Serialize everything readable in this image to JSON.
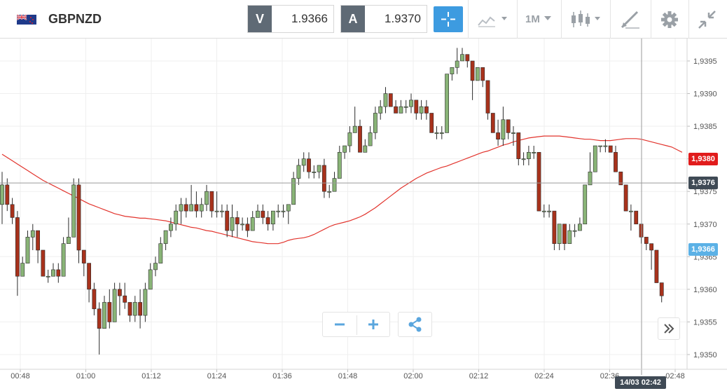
{
  "header": {
    "symbol": "GBPNZD",
    "flag_icon": "gb-nz-flag-icon",
    "bid": {
      "label": "V",
      "value": "1.9366"
    },
    "ask": {
      "label": "A",
      "value": "1.9370"
    },
    "timeframe": "1M",
    "tools": [
      "crosshair-icon",
      "chart-type-icon",
      "timeframe-dropdown",
      "candlestick-icon",
      "drawing-tools-icon",
      "gear-icon",
      "collapse-icon"
    ]
  },
  "chart_data": {
    "type": "candlestick",
    "title": "",
    "xlabel": "",
    "ylabel": "",
    "ylim": [
      1.9348,
      1.93985
    ],
    "y_ticks": [
      "1,9395",
      "1,9390",
      "1,9385",
      "1,9380",
      "1,9375",
      "1,9370",
      "1,9365",
      "1,9360",
      "1,9355",
      "1,9350"
    ],
    "x_ticks": [
      "00:48",
      "01:00",
      "01:12",
      "01:24",
      "01:36",
      "01:48",
      "02:00",
      "02:12",
      "02:24",
      "02:36",
      "02:48"
    ],
    "candles": [
      [
        1.9373,
        1.9378,
        1.937,
        1.9376
      ],
      [
        1.9376,
        1.9377,
        1.9372,
        1.9373
      ],
      [
        1.9373,
        1.9374,
        1.937,
        1.9371
      ],
      [
        1.9371,
        1.9372,
        1.9359,
        1.9362
      ],
      [
        1.9362,
        1.9365,
        1.9362,
        1.9364
      ],
      [
        1.9364,
        1.9369,
        1.9364,
        1.9368
      ],
      [
        1.9368,
        1.937,
        1.9366,
        1.9369
      ],
      [
        1.9369,
        1.9369,
        1.9364,
        1.9366
      ],
      [
        1.9366,
        1.9366,
        1.9362,
        1.9362
      ],
      [
        1.9362,
        1.9363,
        1.9361,
        1.9362
      ],
      [
        1.9362,
        1.9364,
        1.9362,
        1.9363
      ],
      [
        1.9363,
        1.9364,
        1.9361,
        1.9362
      ],
      [
        1.9362,
        1.9368,
        1.9362,
        1.9367
      ],
      [
        1.9367,
        1.9371,
        1.9367,
        1.9368
      ],
      [
        1.9368,
        1.9377,
        1.9368,
        1.9376
      ],
      [
        1.9376,
        1.9377,
        1.9364,
        1.9366
      ],
      [
        1.9366,
        1.9366,
        1.9362,
        1.9364
      ],
      [
        1.9364,
        1.9364,
        1.9358,
        1.936
      ],
      [
        1.936,
        1.9361,
        1.9356,
        1.9357
      ],
      [
        1.9357,
        1.9358,
        1.935,
        1.9354
      ],
      [
        1.9354,
        1.9359,
        1.9354,
        1.9358
      ],
      [
        1.9358,
        1.936,
        1.9354,
        1.9355
      ],
      [
        1.9355,
        1.9361,
        1.9355,
        1.936
      ],
      [
        1.936,
        1.9361,
        1.9356,
        1.9359
      ],
      [
        1.9359,
        1.9361,
        1.9357,
        1.9358
      ],
      [
        1.9358,
        1.9358,
        1.9355,
        1.9356
      ],
      [
        1.9356,
        1.9359,
        1.9355,
        1.9358
      ],
      [
        1.9358,
        1.936,
        1.9354,
        1.9356
      ],
      [
        1.9356,
        1.9361,
        1.9355,
        1.936
      ],
      [
        1.936,
        1.9364,
        1.936,
        1.9363
      ],
      [
        1.9363,
        1.9365,
        1.9362,
        1.9364
      ],
      [
        1.9364,
        1.9368,
        1.9364,
        1.9367
      ],
      [
        1.9367,
        1.9369,
        1.9366,
        1.9369
      ],
      [
        1.9369,
        1.9371,
        1.9368,
        1.937
      ],
      [
        1.937,
        1.9373,
        1.9369,
        1.9372
      ],
      [
        1.9372,
        1.9374,
        1.937,
        1.9373
      ],
      [
        1.9373,
        1.9374,
        1.9371,
        1.9372
      ],
      [
        1.9372,
        1.9376,
        1.9372,
        1.9373
      ],
      [
        1.9373,
        1.9375,
        1.9371,
        1.9372
      ],
      [
        1.9372,
        1.9374,
        1.9371,
        1.9373
      ],
      [
        1.9373,
        1.9376,
        1.9372,
        1.9375
      ],
      [
        1.9375,
        1.9375,
        1.9371,
        1.9372
      ],
      [
        1.9372,
        1.9375,
        1.9371,
        1.9372
      ],
      [
        1.9372,
        1.9373,
        1.9371,
        1.9372
      ],
      [
        1.9372,
        1.9373,
        1.9368,
        1.9369
      ],
      [
        1.9369,
        1.9373,
        1.9368,
        1.9371
      ],
      [
        1.9371,
        1.9372,
        1.9368,
        1.937
      ],
      [
        1.937,
        1.9371,
        1.9369,
        1.937
      ],
      [
        1.937,
        1.9371,
        1.9368,
        1.9369
      ],
      [
        1.9369,
        1.9372,
        1.9369,
        1.9371
      ],
      [
        1.9371,
        1.9373,
        1.9371,
        1.9372
      ],
      [
        1.9372,
        1.9373,
        1.937,
        1.9371
      ],
      [
        1.9371,
        1.9372,
        1.9369,
        1.937
      ],
      [
        1.937,
        1.9372,
        1.9369,
        1.9372
      ],
      [
        1.9372,
        1.9373,
        1.9371,
        1.9372
      ],
      [
        1.9372,
        1.9373,
        1.9371,
        1.9372
      ],
      [
        1.9372,
        1.9373,
        1.937,
        1.9373
      ],
      [
        1.9373,
        1.9378,
        1.9373,
        1.9377
      ],
      [
        1.9377,
        1.938,
        1.9376,
        1.9379
      ],
      [
        1.9379,
        1.9381,
        1.9378,
        1.938
      ],
      [
        1.938,
        1.9381,
        1.9377,
        1.9378
      ],
      [
        1.9378,
        1.9379,
        1.9377,
        1.9378
      ],
      [
        1.9378,
        1.9379,
        1.9377,
        1.9379
      ],
      [
        1.9379,
        1.938,
        1.9374,
        1.9375
      ],
      [
        1.9375,
        1.9376,
        1.9374,
        1.9375
      ],
      [
        1.9375,
        1.9378,
        1.9375,
        1.9377
      ],
      [
        1.9377,
        1.9382,
        1.9377,
        1.9381
      ],
      [
        1.9381,
        1.9382,
        1.938,
        1.9382
      ],
      [
        1.9382,
        1.9385,
        1.9381,
        1.9384
      ],
      [
        1.9384,
        1.9388,
        1.9384,
        1.9385
      ],
      [
        1.9385,
        1.9386,
        1.9381,
        1.9381
      ],
      [
        1.9381,
        1.9383,
        1.9381,
        1.9382
      ],
      [
        1.9382,
        1.9385,
        1.9382,
        1.9384
      ],
      [
        1.9384,
        1.9388,
        1.9383,
        1.9387
      ],
      [
        1.9387,
        1.9389,
        1.9386,
        1.9388
      ],
      [
        1.9388,
        1.9391,
        1.9387,
        1.939
      ],
      [
        1.939,
        1.939,
        1.9388,
        1.9388
      ],
      [
        1.9388,
        1.9389,
        1.9387,
        1.9387
      ],
      [
        1.9387,
        1.9389,
        1.9387,
        1.9388
      ],
      [
        1.9388,
        1.9389,
        1.9387,
        1.9388
      ],
      [
        1.9388,
        1.939,
        1.9387,
        1.9389
      ],
      [
        1.9389,
        1.9389,
        1.9386,
        1.9387
      ],
      [
        1.9387,
        1.9389,
        1.9386,
        1.9388
      ],
      [
        1.9388,
        1.9389,
        1.9386,
        1.9387
      ],
      [
        1.9387,
        1.9387,
        1.9384,
        1.9384
      ],
      [
        1.9384,
        1.9385,
        1.9383,
        1.9384
      ],
      [
        1.9384,
        1.9385,
        1.9383,
        1.9384
      ],
      [
        1.9384,
        1.9393,
        1.9384,
        1.9393
      ],
      [
        1.9393,
        1.9394,
        1.9392,
        1.9394
      ],
      [
        1.9394,
        1.9397,
        1.9393,
        1.9395
      ],
      [
        1.9395,
        1.9397,
        1.9395,
        1.9396
      ],
      [
        1.9396,
        1.9396,
        1.9394,
        1.9395
      ],
      [
        1.9395,
        1.9395,
        1.9389,
        1.9392
      ],
      [
        1.9392,
        1.9394,
        1.9392,
        1.9394
      ],
      [
        1.9394,
        1.9394,
        1.9391,
        1.9392
      ],
      [
        1.9392,
        1.9392,
        1.9386,
        1.9387
      ],
      [
        1.9387,
        1.9387,
        1.9384,
        1.9384
      ],
      [
        1.9384,
        1.9386,
        1.9382,
        1.9383
      ],
      [
        1.9383,
        1.9388,
        1.9382,
        1.9386
      ],
      [
        1.9386,
        1.9386,
        1.9383,
        1.9384
      ],
      [
        1.9384,
        1.9385,
        1.9382,
        1.9384
      ],
      [
        1.9384,
        1.9384,
        1.9379,
        1.938
      ],
      [
        1.938,
        1.9381,
        1.9379,
        1.938
      ],
      [
        1.938,
        1.9382,
        1.9379,
        1.9381
      ],
      [
        1.9381,
        1.9382,
        1.938,
        1.9381
      ],
      [
        1.9381,
        1.9381,
        1.9372,
        1.9372
      ],
      [
        1.9372,
        1.9373,
        1.9371,
        1.9372
      ],
      [
        1.9372,
        1.9373,
        1.9371,
        1.9372
      ],
      [
        1.9372,
        1.9372,
        1.9366,
        1.9367
      ],
      [
        1.9367,
        1.937,
        1.9366,
        1.937
      ],
      [
        1.937,
        1.937,
        1.9366,
        1.9367
      ],
      [
        1.9367,
        1.937,
        1.9367,
        1.9369
      ],
      [
        1.9369,
        1.937,
        1.9368,
        1.9369
      ],
      [
        1.9369,
        1.9371,
        1.9369,
        1.937
      ],
      [
        1.937,
        1.9376,
        1.937,
        1.9376
      ],
      [
        1.9376,
        1.9381,
        1.9376,
        1.9378
      ],
      [
        1.9378,
        1.9382,
        1.9378,
        1.9382
      ],
      [
        1.9382,
        1.9382,
        1.9381,
        1.9382
      ],
      [
        1.9382,
        1.9383,
        1.9381,
        1.9382
      ],
      [
        1.9382,
        1.9382,
        1.9381,
        1.9381
      ],
      [
        1.9381,
        1.9382,
        1.9378,
        1.9378
      ],
      [
        1.9378,
        1.9378,
        1.9376,
        1.9376
      ],
      [
        1.9376,
        1.9376,
        1.9372,
        1.9372
      ],
      [
        1.9372,
        1.9373,
        1.9369,
        1.9372
      ],
      [
        1.9372,
        1.9372,
        1.937,
        1.937
      ],
      [
        1.937,
        1.937,
        1.9367,
        1.9368
      ],
      [
        1.9368,
        1.9368,
        1.9366,
        1.9367
      ],
      [
        1.9367,
        1.9367,
        1.9363,
        1.9366
      ],
      [
        1.9366,
        1.9366,
        1.9361,
        1.9361
      ],
      [
        1.9361,
        1.9361,
        1.9358,
        1.9359
      ]
    ],
    "moving_average": [
      1.93807,
      1.93802,
      1.93797,
      1.93792,
      1.93787,
      1.93782,
      1.93777,
      1.93772,
      1.93767,
      1.93763,
      1.93759,
      1.93755,
      1.93751,
      1.93747,
      1.93743,
      1.93739,
      1.93735,
      1.93731,
      1.93728,
      1.93725,
      1.93722,
      1.93719,
      1.93716,
      1.93714,
      1.93712,
      1.93711,
      1.9371,
      1.93709,
      1.93709,
      1.93708,
      1.93707,
      1.93706,
      1.93705,
      1.93703,
      1.93701,
      1.93699,
      1.93697,
      1.93695,
      1.93694,
      1.93692,
      1.9369,
      1.93689,
      1.93687,
      1.93685,
      1.93683,
      1.93681,
      1.93679,
      1.93677,
      1.93675,
      1.93673,
      1.93672,
      1.93671,
      1.9367,
      1.9367,
      1.9367,
      1.93672,
      1.93675,
      1.93677,
      1.93678,
      1.93679,
      1.93681,
      1.93684,
      1.93688,
      1.93692,
      1.93696,
      1.93699,
      1.93701,
      1.93703,
      1.93705,
      1.93708,
      1.93711,
      1.93715,
      1.9372,
      1.93725,
      1.93731,
      1.93737,
      1.93743,
      1.93749,
      1.93755,
      1.9376,
      1.93765,
      1.9377,
      1.93774,
      1.93778,
      1.93781,
      1.93784,
      1.93787,
      1.93789,
      1.93792,
      1.93795,
      1.93798,
      1.93801,
      1.93804,
      1.93807,
      1.9381,
      1.93812,
      1.93815,
      1.93818,
      1.93821,
      1.93823,
      1.93826,
      1.93828,
      1.9383,
      1.93832,
      1.93833,
      1.93834,
      1.93835,
      1.93835,
      1.93835,
      1.93835,
      1.93834,
      1.93833,
      1.93832,
      1.93831,
      1.9383,
      1.9383,
      1.93829,
      1.93828,
      1.93828,
      1.93828,
      1.93829,
      1.9383,
      1.93831,
      1.93831,
      1.93831,
      1.9383,
      1.93828,
      1.93826,
      1.93824,
      1.93822,
      1.9382,
      1.93818,
      1.93814,
      1.9381
    ],
    "ma_level": {
      "label": "1,9380",
      "value": 1.938
    },
    "last_price": {
      "label": "1,9376",
      "value": 1.93763
    },
    "bid_level": {
      "label": "1,9366",
      "value": 1.93661
    },
    "crosshair_time": "14/03 02:42",
    "colors": {
      "up": "#89b477",
      "down": "#a8321c",
      "ma": "#e2332c",
      "grid": "#efefef"
    }
  },
  "controls": {
    "zoom_out_icon": "minus-icon",
    "zoom_in_icon": "plus-icon",
    "share_icon": "share-icon",
    "scroll_icon": "double-chevron-right-icon"
  }
}
